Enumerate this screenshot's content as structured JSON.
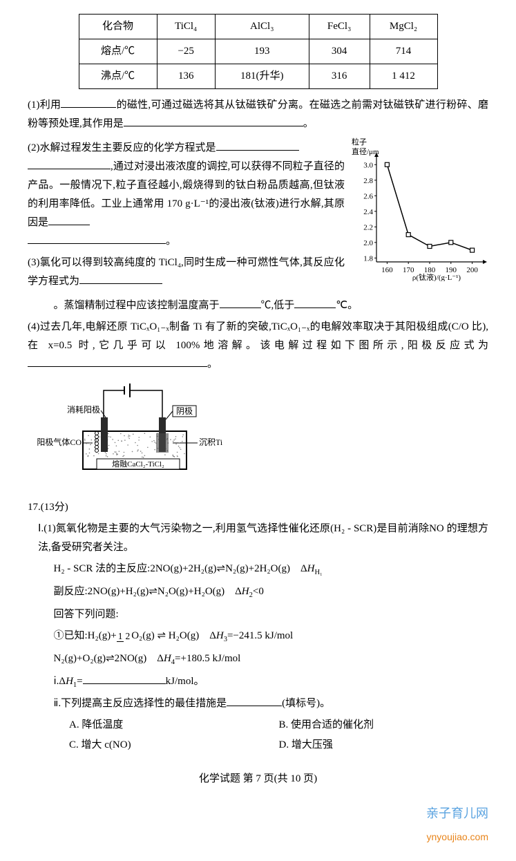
{
  "table": {
    "columns": [
      "化合物",
      "TiCl₄",
      "AlCl₃",
      "FeCl₃",
      "MgCl₂"
    ],
    "rows": [
      [
        "熔点/℃",
        "−25",
        "193",
        "304",
        "714"
      ],
      [
        "沸点/℃",
        "136",
        "181(升华)",
        "316",
        "1 412"
      ]
    ],
    "border_color": "#000000",
    "cell_align": "center"
  },
  "q1": {
    "prefix": "(1)利用",
    "mid": "的磁性,可通过磁选将其从钛磁铁矿分离。在磁选之前需对钛磁铁矿进行粉碎、磨粉等预处理,其作用是",
    "tail": "。"
  },
  "q2": {
    "text_a": "(2)水解过程发生主要反应的化学方程式是",
    "text_b": ",通过对浸出液浓度的调控,可以获得不同粒子直径的产品。一般情况下,粒子直径越小,煅烧得到的钛白粉品质越高,但钛液的利用率降低。工业上通常用 170 g·L⁻¹的浸出液(钛液)进行水解,其原因是",
    "text_c": "。"
  },
  "chart": {
    "type": "line",
    "xlabel": "ρ(钛液)/(g·L⁻¹)",
    "ylabel": "粒子\n直径/μm",
    "xlim": [
      155,
      205
    ],
    "ylim": [
      1.75,
      3.1
    ],
    "xticks": [
      160,
      170,
      180,
      190,
      200
    ],
    "yticks": [
      1.8,
      2.0,
      2.2,
      2.4,
      2.6,
      2.8,
      3.0
    ],
    "points": [
      {
        "x": 160,
        "y": 3.0
      },
      {
        "x": 170,
        "y": 2.1
      },
      {
        "x": 180,
        "y": 1.95
      },
      {
        "x": 190,
        "y": 2.0
      },
      {
        "x": 200,
        "y": 1.9
      }
    ],
    "line_color": "#000000",
    "marker": "square-open",
    "marker_size": 6,
    "background_color": "#ffffff",
    "axis_color": "#000000",
    "font_size": 11
  },
  "q3": {
    "text_a": "(3)氯化可以得到较高纯度的 TiCl₄,同时生成一种可燃性气体,其反应化学方程式为",
    "text_b": "。蒸馏精制过程中应该控制温度高于",
    "text_c": "℃,低于",
    "text_d": "℃。"
  },
  "q4": {
    "text_a": "(4)过去几年,电解还原 TiCₓO₁₋ₓ制备 Ti 有了新的突破,TiCₓO₁₋ₓ的电解效率取决于其阳极组成(C/O 比),在 x=0.5 时,它几乎可以 100%地溶解。该电解过程如下图所示,阳极反应式为",
    "text_b": "。"
  },
  "diagram": {
    "labels": {
      "anode_consume": "消耗阳极",
      "anode_gas": "阳极气体CO",
      "cathode": "阴极",
      "deposit": "沉积Ti",
      "electrolyte": "熔融CaCl₂-TiCl₂"
    },
    "colors": {
      "electrode": "#2b2b2b",
      "bath_border": "#000000",
      "bath_fill_pattern": "#808080",
      "bubble_stroke": "#000000",
      "ti_fill": "#4a4a4a"
    }
  },
  "q17": {
    "number": "17.(13分)",
    "part_I": "Ⅰ.(1)氮氧化物是主要的大气污染物之一,利用氢气选择性催化还原(H₂ - SCR)是目前消除NO 的理想方法,备受研究者关注。",
    "main_reaction_label": "H₂ - SCR 法的主反应:",
    "main_reaction": "2NO(g)+2H₂(g)⇌N₂(g)+2H₂O(g)　Δ",
    "main_reaction_sub": "H₁",
    "side_reaction_label": "副反应:",
    "side_reaction": "2NO(g)+H₂(g)⇌N₂O(g)+H₂O(g)　Δ",
    "side_reaction_sub": "H₂<0",
    "answer_label": "回答下列问题:",
    "sub1_label": "①已知:",
    "eq1_a": "H₂(g)+",
    "eq1_frac_num": "1",
    "eq1_frac_den": "2",
    "eq1_b": "O₂(g) ⇌ H₂O(g)　Δ",
    "eq1_h": "H₃=−241.5 kJ/mol",
    "eq2": "N₂(g)+O₂(g)⇌2NO(g)　Δ",
    "eq2_h": "H₄=+180.5 kJ/mol",
    "sub_i": "ⅰ.Δ",
    "sub_i_h": "H₁=",
    "sub_i_unit": "kJ/mol。",
    "sub_ii": "ⅱ.下列提高主反应选择性的最佳措施是",
    "sub_ii_tail": "(填标号)。",
    "options": {
      "A": "A. 降低温度",
      "B": "B. 使用合适的催化剂",
      "C": "C. 增大 c(NO)",
      "D": "D. 增大压强"
    }
  },
  "footer": "化学试题 第 7 页(共 10 页)",
  "watermark": {
    "name": "亲子育儿网",
    "url": "ynyoujiao.com"
  }
}
